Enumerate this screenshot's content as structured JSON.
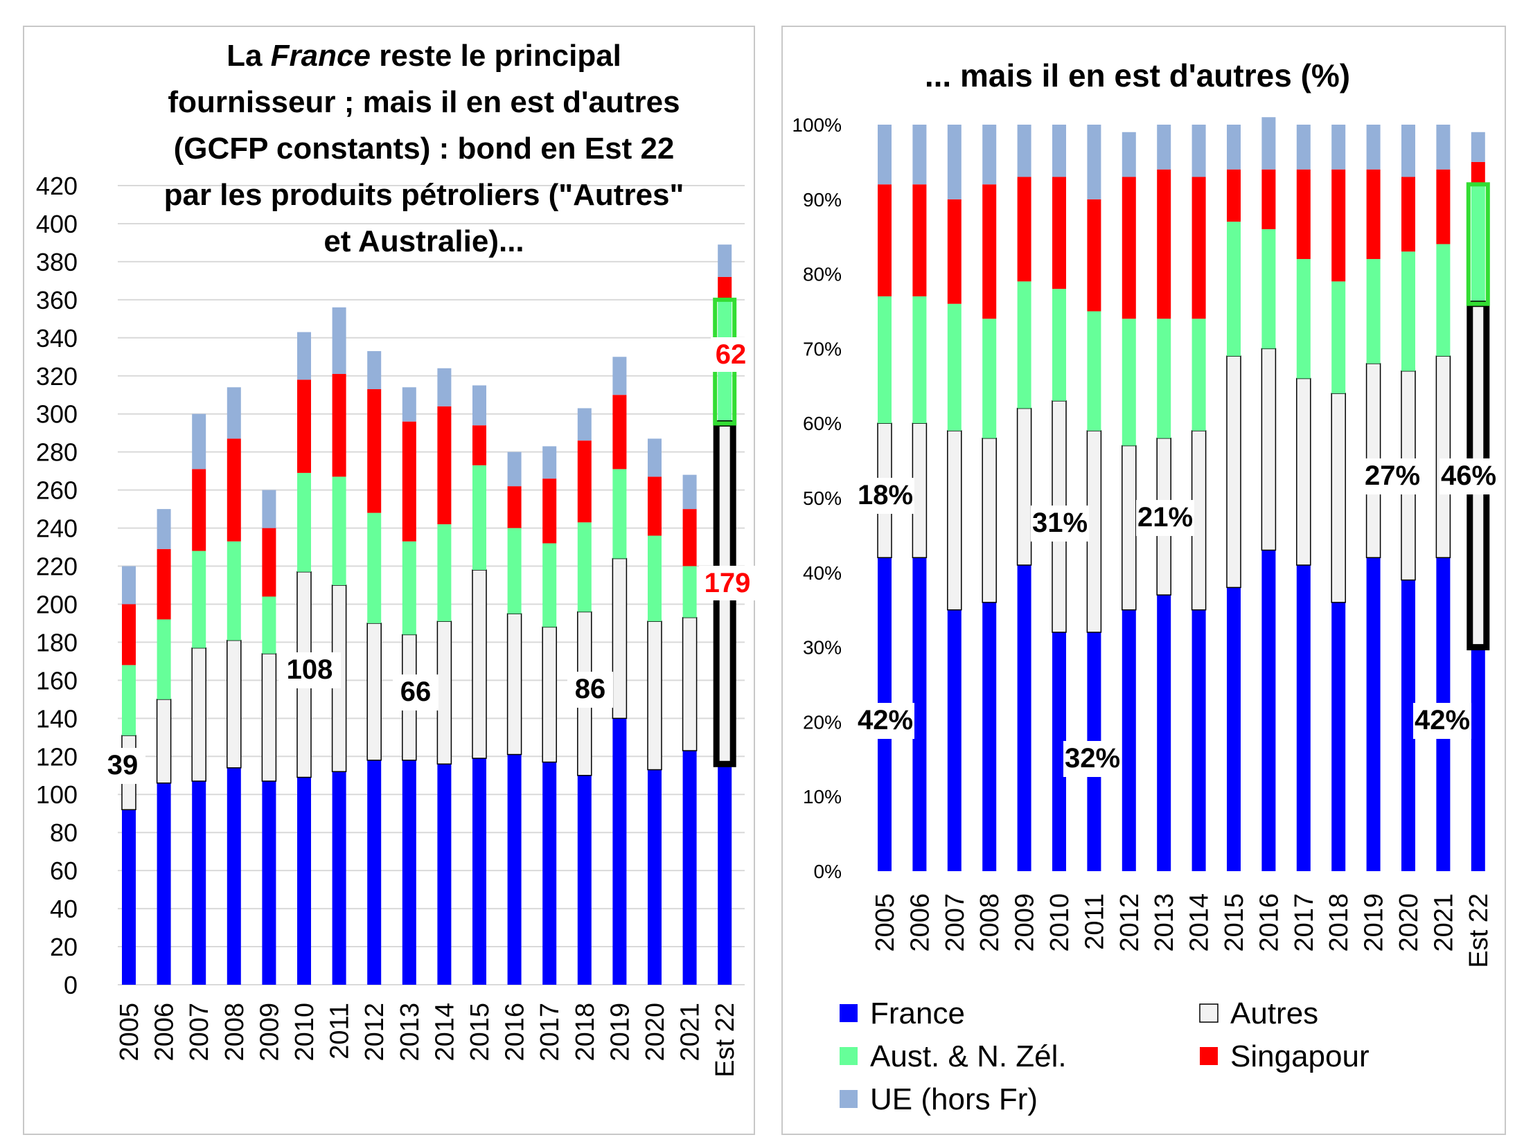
{
  "colors": {
    "France": "#0000ff",
    "Autres": "#f2f2f2",
    "Aust": "#66ff99",
    "Singapour": "#ff0000",
    "UE": "#94b0d9",
    "annot_red": "#ff0000"
  },
  "legend": [
    {
      "key": "France",
      "label": "France"
    },
    {
      "key": "Autres",
      "label": "Autres"
    },
    {
      "key": "Aust",
      "label": "Aust. & N. Zél."
    },
    {
      "key": "Singapour",
      "label": "Singapour"
    },
    {
      "key": "UE",
      "label": "UE (hors Fr)"
    }
  ],
  "chart_data": [
    {
      "type": "bar",
      "stacked": true,
      "title_lines": [
        [
          "La ",
          "France",
          " reste le principal"
        ],
        [
          "fournisseur ; mais il en est d'autres"
        ],
        [
          "(GCFP constants) : bond en Est 22"
        ],
        [
          "par les produits pétroliers (\"Autres\""
        ],
        [
          "et Australie)..."
        ]
      ],
      "categories": [
        "2005",
        "2006",
        "2007",
        "2008",
        "2009",
        "2010",
        "2011",
        "2012",
        "2013",
        "2014",
        "2015",
        "2016",
        "2017",
        "2018",
        "2019",
        "2020",
        "2021",
        "Est 22"
      ],
      "yticks": [
        "0",
        "20",
        "40",
        "60",
        "80",
        "100",
        "120",
        "140",
        "160",
        "180",
        "200",
        "220",
        "240",
        "260",
        "280",
        "300",
        "320",
        "340",
        "360",
        "380",
        "400",
        "420"
      ],
      "ylim": [
        0,
        420
      ],
      "grid": true,
      "series": [
        {
          "name": "France",
          "key": "France",
          "values": [
            92,
            106,
            107,
            114,
            107,
            109,
            112,
            118,
            118,
            116,
            119,
            121,
            117,
            110,
            140,
            113,
            123,
            116
          ]
        },
        {
          "name": "Autres",
          "key": "Autres",
          "values": [
            39,
            44,
            70,
            67,
            67,
            108,
            98,
            72,
            66,
            75,
            99,
            74,
            71,
            86,
            84,
            78,
            70,
            179
          ]
        },
        {
          "name": "Aust. & N. Zél.",
          "key": "Aust",
          "values": [
            37,
            42,
            51,
            52,
            30,
            52,
            57,
            58,
            49,
            51,
            55,
            45,
            44,
            47,
            47,
            45,
            27,
            65
          ]
        },
        {
          "name": "Singapour",
          "key": "Singapour",
          "values": [
            32,
            37,
            43,
            54,
            36,
            49,
            54,
            65,
            63,
            62,
            21,
            22,
            34,
            43,
            39,
            31,
            30,
            12
          ]
        },
        {
          "name": "UE (hors Fr)",
          "key": "UE",
          "values": [
            20,
            21,
            29,
            27,
            20,
            25,
            35,
            20,
            18,
            20,
            21,
            18,
            17,
            17,
            20,
            20,
            18,
            17
          ]
        }
      ],
      "annotations": [
        {
          "text": "39",
          "color": "black"
        },
        {
          "text": "108",
          "color": "black"
        },
        {
          "text": "66",
          "color": "black"
        },
        {
          "text": "86",
          "color": "black"
        },
        {
          "text": "179",
          "color": "red"
        },
        {
          "text": "62",
          "color": "red"
        }
      ]
    },
    {
      "type": "bar",
      "stacked": true,
      "title": "... mais il en est d'autres (%)",
      "categories": [
        "2005",
        "2006",
        "2007",
        "2008",
        "2009",
        "2010",
        "2011",
        "2012",
        "2013",
        "2014",
        "2015",
        "2016",
        "2017",
        "2018",
        "2019",
        "2020",
        "2021",
        "Est 22"
      ],
      "yticks": [
        "0%",
        "10%",
        "20%",
        "30%",
        "40%",
        "50%",
        "60%",
        "70%",
        "80%",
        "90%",
        "100%"
      ],
      "ylim": [
        0,
        100
      ],
      "grid": false,
      "series": [
        {
          "name": "France",
          "key": "France",
          "values": [
            42,
            42,
            35,
            36,
            41,
            32,
            32,
            35,
            37,
            35,
            38,
            43,
            41,
            36,
            42,
            39,
            42,
            30
          ]
        },
        {
          "name": "Autres",
          "key": "Autres",
          "values": [
            18,
            18,
            24,
            22,
            21,
            31,
            27,
            22,
            21,
            24,
            31,
            27,
            25,
            28,
            26,
            28,
            27,
            46
          ]
        },
        {
          "name": "Aust. & N. Zél.",
          "key": "Aust",
          "values": [
            17,
            17,
            17,
            16,
            17,
            15,
            16,
            17,
            16,
            15,
            18,
            16,
            16,
            15,
            14,
            16,
            15,
            16
          ]
        },
        {
          "name": "Singapour",
          "key": "Singapour",
          "values": [
            15,
            15,
            14,
            18,
            14,
            15,
            15,
            19,
            20,
            19,
            7,
            8,
            12,
            15,
            12,
            10,
            10,
            3
          ]
        },
        {
          "name": "UE (hors Fr)",
          "key": "UE",
          "values": [
            8,
            8,
            10,
            8,
            7,
            7,
            10,
            6,
            6,
            7,
            6,
            7,
            6,
            6,
            6,
            7,
            6,
            4
          ]
        }
      ],
      "annotations": [
        {
          "text": "18%",
          "color": "black"
        },
        {
          "text": "42%",
          "color": "black"
        },
        {
          "text": "31%",
          "color": "black"
        },
        {
          "text": "32%",
          "color": "black"
        },
        {
          "text": "21%",
          "color": "black"
        },
        {
          "text": "27%",
          "color": "black"
        },
        {
          "text": "46%",
          "color": "black"
        },
        {
          "text": "42%",
          "color": "black"
        }
      ]
    }
  ]
}
